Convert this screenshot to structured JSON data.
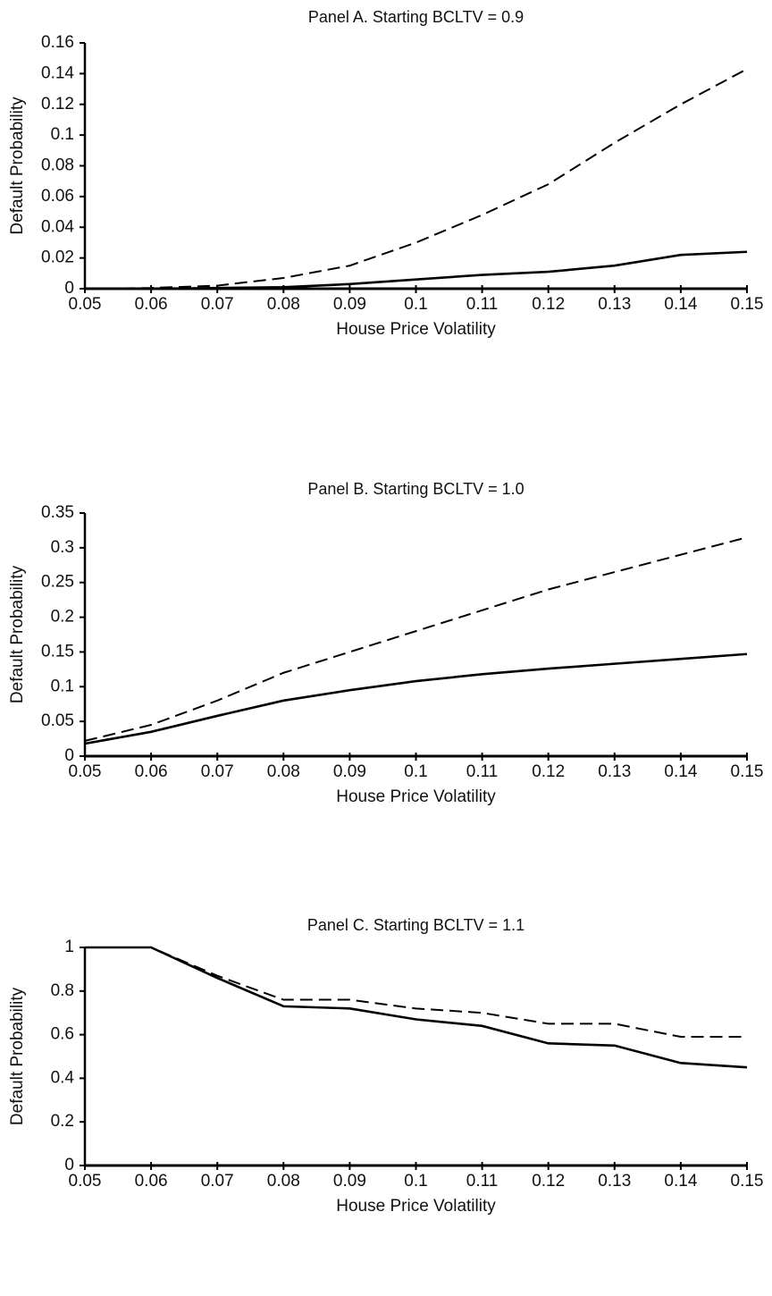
{
  "chart_data": [
    {
      "type": "line",
      "title": "Panel A.  Starting BCLTV = 0.9",
      "xlabel": "House Price Volatility",
      "ylabel": "Default Probability",
      "x": [
        0.05,
        0.06,
        0.07,
        0.08,
        0.09,
        0.1,
        0.11,
        0.12,
        0.13,
        0.14,
        0.15
      ],
      "xlim": [
        0.05,
        0.15
      ],
      "xticks": [
        0.05,
        0.06,
        0.07,
        0.08,
        0.09,
        0.1,
        0.11,
        0.12,
        0.13,
        0.14,
        0.15
      ],
      "ylim": [
        0,
        0.16
      ],
      "yticks": [
        0,
        0.02,
        0.04,
        0.06,
        0.08,
        0.1,
        0.12,
        0.14,
        0.16
      ],
      "series": [
        {
          "color": "#000000",
          "line_style": "dashed",
          "values": [
            0,
            0.0005,
            0.002,
            0.007,
            0.015,
            0.03,
            0.048,
            0.068,
            0.095,
            0.12,
            0.143
          ]
        },
        {
          "color": "#000000",
          "line_style": "solid",
          "values": [
            0,
            0,
            0.0005,
            0.001,
            0.003,
            0.006,
            0.009,
            0.011,
            0.015,
            0.022,
            0.024
          ]
        }
      ]
    },
    {
      "type": "line",
      "title": "Panel B.  Starting BCLTV = 1.0",
      "xlabel": "House Price Volatility",
      "ylabel": "Default Probability",
      "x": [
        0.05,
        0.06,
        0.07,
        0.08,
        0.09,
        0.1,
        0.11,
        0.12,
        0.13,
        0.14,
        0.15
      ],
      "xlim": [
        0.05,
        0.15
      ],
      "xticks": [
        0.05,
        0.06,
        0.07,
        0.08,
        0.09,
        0.1,
        0.11,
        0.12,
        0.13,
        0.14,
        0.15
      ],
      "ylim": [
        0,
        0.35
      ],
      "yticks": [
        0,
        0.05,
        0.1,
        0.15,
        0.2,
        0.25,
        0.3,
        0.35
      ],
      "series": [
        {
          "color": "#000000",
          "line_style": "dashed",
          "values": [
            0.022,
            0.045,
            0.08,
            0.12,
            0.15,
            0.18,
            0.21,
            0.24,
            0.265,
            0.29,
            0.315
          ]
        },
        {
          "color": "#000000",
          "line_style": "solid",
          "values": [
            0.018,
            0.035,
            0.058,
            0.08,
            0.095,
            0.108,
            0.118,
            0.126,
            0.133,
            0.14,
            0.147
          ]
        }
      ]
    },
    {
      "type": "line",
      "title": "Panel C.  Starting BCLTV = 1.1",
      "xlabel": "House Price Volatility",
      "ylabel": "Default Probability",
      "x": [
        0.05,
        0.06,
        0.07,
        0.08,
        0.09,
        0.1,
        0.11,
        0.12,
        0.13,
        0.14,
        0.15
      ],
      "xlim": [
        0.05,
        0.15
      ],
      "xticks": [
        0.05,
        0.06,
        0.07,
        0.08,
        0.09,
        0.1,
        0.11,
        0.12,
        0.13,
        0.14,
        0.15
      ],
      "ylim": [
        0,
        1
      ],
      "yticks": [
        0,
        0.2,
        0.4,
        0.6,
        0.8,
        1
      ],
      "series": [
        {
          "color": "#000000",
          "line_style": "dashed",
          "values": [
            1,
            1,
            0.87,
            0.76,
            0.76,
            0.72,
            0.7,
            0.65,
            0.65,
            0.59,
            0.59
          ]
        },
        {
          "color": "#000000",
          "line_style": "solid",
          "values": [
            1,
            1,
            0.86,
            0.73,
            0.72,
            0.67,
            0.64,
            0.56,
            0.55,
            0.47,
            0.45
          ]
        }
      ]
    }
  ]
}
